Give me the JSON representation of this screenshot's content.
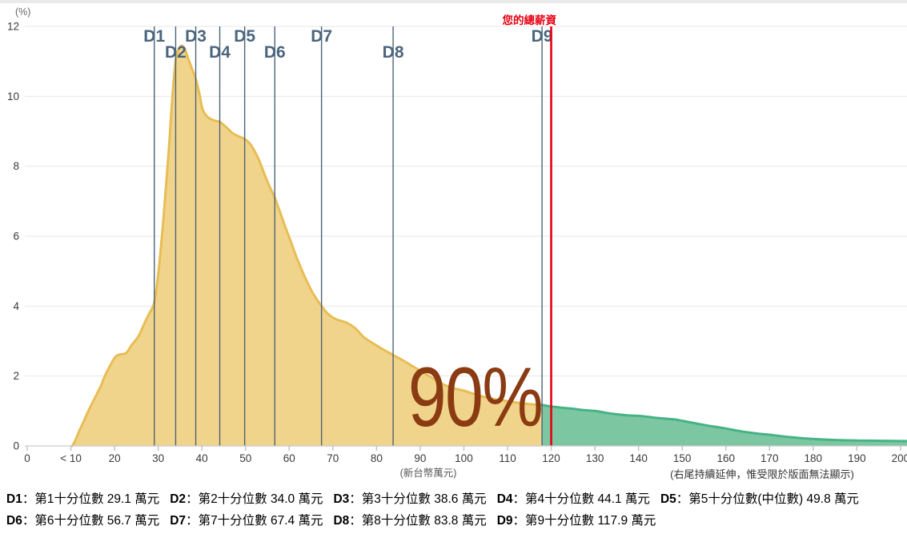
{
  "page": {
    "top_strip_color": "#eaeaea",
    "background": "#ffffff"
  },
  "chart_data": {
    "type": "area",
    "title": "",
    "ylabel": "(%)",
    "ylim": [
      0,
      12
    ],
    "y_ticks": [
      0,
      2,
      4,
      6,
      8,
      10,
      12
    ],
    "grid": true,
    "x_tick_values": [
      0,
      10,
      20,
      30,
      40,
      50,
      60,
      70,
      80,
      90,
      100,
      110,
      120,
      130,
      140,
      150,
      160,
      170,
      180,
      190,
      200
    ],
    "x_tick_labels": [
      "0",
      "< 10",
      "20",
      "30",
      "40",
      "50",
      "60",
      "70",
      "80",
      "90",
      "100",
      "110",
      "120",
      "130",
      "140",
      "150",
      "160",
      "170",
      "180",
      "190",
      "200"
    ],
    "x_unit_note": "(新台幣萬元)",
    "right_note": "(右尾持續延伸，惟受限於版面無法顯示)",
    "series": [
      {
        "name": "below-90th-percentile-area",
        "fill": "#f1d48b",
        "stroke": "#e7bd55",
        "points": [
          [
            10.3,
            0
          ],
          [
            11,
            0.15
          ],
          [
            12,
            0.45
          ],
          [
            13,
            0.72
          ],
          [
            14,
            1.0
          ],
          [
            15,
            1.25
          ],
          [
            16,
            1.5
          ],
          [
            17,
            1.75
          ],
          [
            17.6,
            1.95
          ],
          [
            19,
            2.3
          ],
          [
            20.3,
            2.56
          ],
          [
            21.5,
            2.62
          ],
          [
            22.7,
            2.66
          ],
          [
            24,
            2.9
          ],
          [
            25.5,
            3.14
          ],
          [
            27,
            3.55
          ],
          [
            28,
            3.8
          ],
          [
            29.1,
            4.1
          ],
          [
            30,
            4.9
          ],
          [
            31,
            6.2
          ],
          [
            31.7,
            7.3
          ],
          [
            32.5,
            8.6
          ],
          [
            33.2,
            9.9
          ],
          [
            34,
            11.05
          ],
          [
            34.7,
            11.35
          ],
          [
            35.4,
            11.45
          ],
          [
            36.1,
            11.35
          ],
          [
            36.8,
            11.1
          ],
          [
            37.7,
            10.8
          ],
          [
            38.6,
            10.5
          ],
          [
            39.4,
            10.1
          ],
          [
            40.1,
            9.65
          ],
          [
            41,
            9.45
          ],
          [
            42,
            9.35
          ],
          [
            43.1,
            9.3
          ],
          [
            44.1,
            9.27
          ],
          [
            45.7,
            9.1
          ],
          [
            47,
            8.95
          ],
          [
            48.5,
            8.85
          ],
          [
            49.8,
            8.78
          ],
          [
            51,
            8.65
          ],
          [
            52,
            8.45
          ],
          [
            53,
            8.2
          ],
          [
            54.5,
            7.72
          ],
          [
            55.5,
            7.42
          ],
          [
            56.7,
            7.1
          ],
          [
            58,
            6.65
          ],
          [
            59,
            6.3
          ],
          [
            60.5,
            5.8
          ],
          [
            61.6,
            5.42
          ],
          [
            63,
            5.0
          ],
          [
            64,
            4.72
          ],
          [
            65.5,
            4.35
          ],
          [
            67.4,
            4.0
          ],
          [
            69,
            3.76
          ],
          [
            70.8,
            3.62
          ],
          [
            73.2,
            3.52
          ],
          [
            75,
            3.38
          ],
          [
            77,
            3.12
          ],
          [
            79,
            2.95
          ],
          [
            81.5,
            2.76
          ],
          [
            83.8,
            2.6
          ],
          [
            86,
            2.45
          ],
          [
            88,
            2.3
          ],
          [
            90,
            2.15
          ],
          [
            92,
            2.0
          ],
          [
            94,
            1.85
          ],
          [
            96,
            1.72
          ],
          [
            98,
            1.64
          ],
          [
            100,
            1.58
          ],
          [
            103,
            1.46
          ],
          [
            106,
            1.36
          ],
          [
            110,
            1.28
          ],
          [
            114,
            1.21
          ],
          [
            117.9,
            1.17
          ]
        ]
      },
      {
        "name": "above-90th-percentile-tail-area",
        "fill": "#7cc7a1",
        "stroke": "#47b286",
        "points": [
          [
            117.9,
            1.17
          ],
          [
            120,
            1.13
          ],
          [
            122,
            1.1
          ],
          [
            124.5,
            1.07
          ],
          [
            127,
            1.03
          ],
          [
            130,
            1.0
          ],
          [
            133,
            0.94
          ],
          [
            135.5,
            0.9
          ],
          [
            138,
            0.87
          ],
          [
            140,
            0.86
          ],
          [
            143,
            0.82
          ],
          [
            146,
            0.78
          ],
          [
            148,
            0.76
          ],
          [
            150,
            0.72
          ],
          [
            152.5,
            0.66
          ],
          [
            155,
            0.6
          ],
          [
            157.5,
            0.55
          ],
          [
            160,
            0.5
          ],
          [
            162.5,
            0.44
          ],
          [
            165,
            0.39
          ],
          [
            167.5,
            0.35
          ],
          [
            170,
            0.32
          ],
          [
            172.5,
            0.28
          ],
          [
            175,
            0.25
          ],
          [
            177.5,
            0.22
          ],
          [
            180,
            0.2
          ],
          [
            183,
            0.18
          ],
          [
            186,
            0.165
          ],
          [
            190,
            0.155
          ],
          [
            194,
            0.148
          ],
          [
            198,
            0.142
          ],
          [
            201.6,
            0.138
          ]
        ]
      }
    ],
    "deciles": [
      {
        "id": "D1",
        "value": 29.1,
        "row": 1
      },
      {
        "id": "D2",
        "value": 34.0,
        "row": 2
      },
      {
        "id": "D3",
        "value": 38.6,
        "row": 1
      },
      {
        "id": "D4",
        "value": 44.1,
        "row": 2
      },
      {
        "id": "D5",
        "value": 49.8,
        "row": 1
      },
      {
        "id": "D6",
        "value": 56.7,
        "row": 2
      },
      {
        "id": "D7",
        "value": 67.4,
        "row": 1
      },
      {
        "id": "D8",
        "value": 83.8,
        "row": 2
      },
      {
        "id": "D9",
        "value": 117.9,
        "row": 1
      }
    ],
    "decile_line_color": "#4d6377",
    "decile_label_color": "#4a657e",
    "marker": {
      "label": "您的總薪資",
      "value": 120,
      "color": "#e60012"
    },
    "overlay": {
      "text": "90%",
      "color": "#8a3b12"
    },
    "axis_color": "#c9c9c9",
    "grid_color": "#e7e7e7",
    "tick_color": "#b3c3d9",
    "tick_label_color": "#3a3a3a"
  },
  "legend": {
    "line1": [
      {
        "k": "D1",
        "t": "：第1十分位數 29.1 萬元"
      },
      {
        "k": "D2",
        "t": "：第2十分位數 34.0 萬元"
      },
      {
        "k": "D3",
        "t": "：第3十分位數 38.6 萬元"
      },
      {
        "k": "D4",
        "t": "：第4十分位數 44.1 萬元"
      },
      {
        "k": "D5",
        "t": "：第5十分位數(中位數) 49.8 萬元"
      }
    ],
    "line2": [
      {
        "k": "D6",
        "t": "：第6十分位數 56.7 萬元"
      },
      {
        "k": "D7",
        "t": "：第7十分位數 67.4 萬元"
      },
      {
        "k": "D8",
        "t": "：第8十分位數 83.8 萬元"
      },
      {
        "k": "D9",
        "t": "：第9十分位數 117.9 萬元"
      }
    ]
  }
}
